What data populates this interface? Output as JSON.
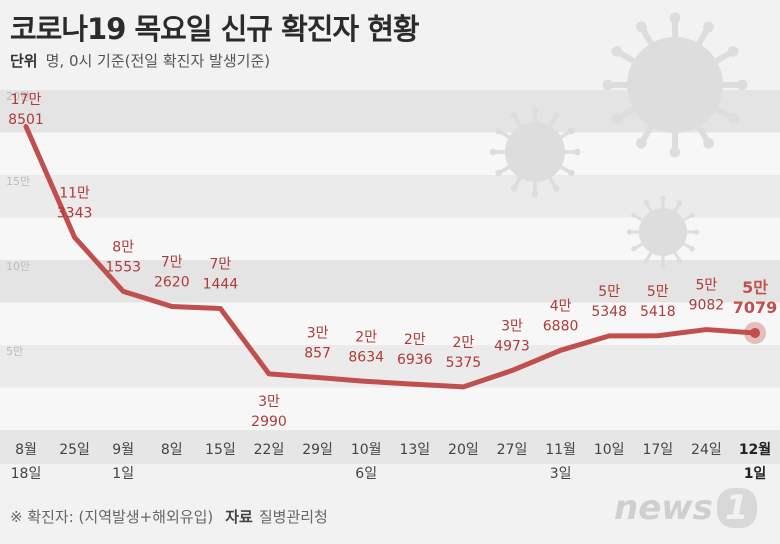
{
  "title": "코로나19 목요일 신규 확진자 현황",
  "unit": {
    "label": "단위",
    "text": "명, 0시 기준(전일 확진자 발생기준)"
  },
  "footer": {
    "note": "※ 확진자: (지역발생+해외유입)",
    "source_label": "자료",
    "source": "질병관리청"
  },
  "logo": {
    "text": "news",
    "mark": "1"
  },
  "colors": {
    "line": "#c0504d",
    "label": "#b03a3a",
    "last_label": "#c0504d",
    "band": "#e4e4e4",
    "band_light": "#ebebeb",
    "plot_bg": "#f7f7f7"
  },
  "chart_data": {
    "type": "line",
    "categories": [
      "8월\n18일",
      "25일",
      "9월\n1일",
      "8일",
      "15일",
      "22일",
      "29일",
      "10월\n6일",
      "13일",
      "20일",
      "27일",
      "11월\n3일",
      "10일",
      "17일",
      "24일",
      "12월\n1일"
    ],
    "values": [
      178501,
      113343,
      81553,
      72620,
      71444,
      32990,
      30857,
      28634,
      26936,
      25375,
      34973,
      46880,
      55348,
      55418,
      59082,
      57079
    ],
    "value_labels": [
      [
        "17만",
        "8501"
      ],
      [
        "11만",
        "3343"
      ],
      [
        "8만",
        "1553"
      ],
      [
        "7만",
        "2620"
      ],
      [
        "7만",
        "1444"
      ],
      [
        "3만",
        "2990"
      ],
      [
        "3만",
        "857"
      ],
      [
        "2만",
        "8634"
      ],
      [
        "2만",
        "6936"
      ],
      [
        "2만",
        "5375"
      ],
      [
        "3만",
        "4973"
      ],
      [
        "4만",
        "6880"
      ],
      [
        "5만",
        "5348"
      ],
      [
        "5만",
        "5418"
      ],
      [
        "5만",
        "9082"
      ],
      [
        "5만",
        "7079"
      ]
    ],
    "y_ticks": [
      "5만",
      "10만",
      "15만",
      "20만"
    ],
    "ylim": [
      0,
      200000
    ],
    "grid": "horizontal bands",
    "highlight_last": true
  }
}
